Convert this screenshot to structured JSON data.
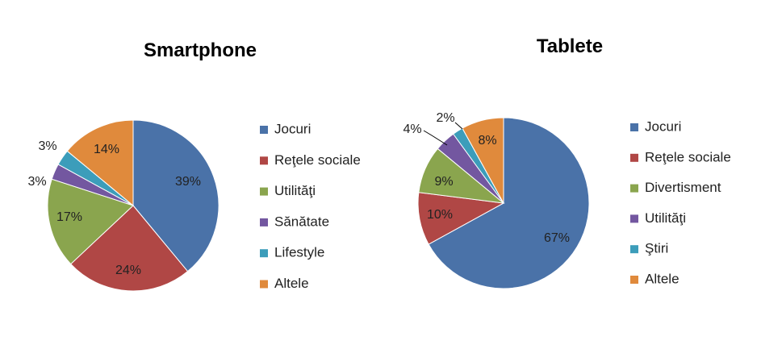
{
  "chart_data": [
    {
      "type": "pie",
      "title": "Smartphone",
      "legend_position": "right",
      "categories": [
        "Jocuri",
        "Reţele sociale",
        "Utilităţi",
        "Sănătate",
        "Lifestyle",
        "Altele"
      ],
      "values": [
        39,
        24,
        17,
        3,
        3,
        14
      ],
      "labels": [
        "39%",
        "24%",
        "17%",
        "3%",
        "3%",
        "14%"
      ],
      "colors": [
        "#4A72A8",
        "#B04745",
        "#8AA54E",
        "#7357A0",
        "#3C9DBA",
        "#E08A3C"
      ]
    },
    {
      "type": "pie",
      "title": "Tablete",
      "legend_position": "right",
      "categories": [
        "Jocuri",
        "Reţele sociale",
        "Divertisment",
        "Utilităţi",
        "Ştiri",
        "Altele"
      ],
      "values": [
        67,
        10,
        9,
        4,
        2,
        8
      ],
      "labels": [
        "67%",
        "10%",
        "9%",
        "4%",
        "2%",
        "8%"
      ],
      "colors": [
        "#4A72A8",
        "#B04745",
        "#8AA54E",
        "#7357A0",
        "#3C9DBA",
        "#E08A3C"
      ]
    }
  ]
}
